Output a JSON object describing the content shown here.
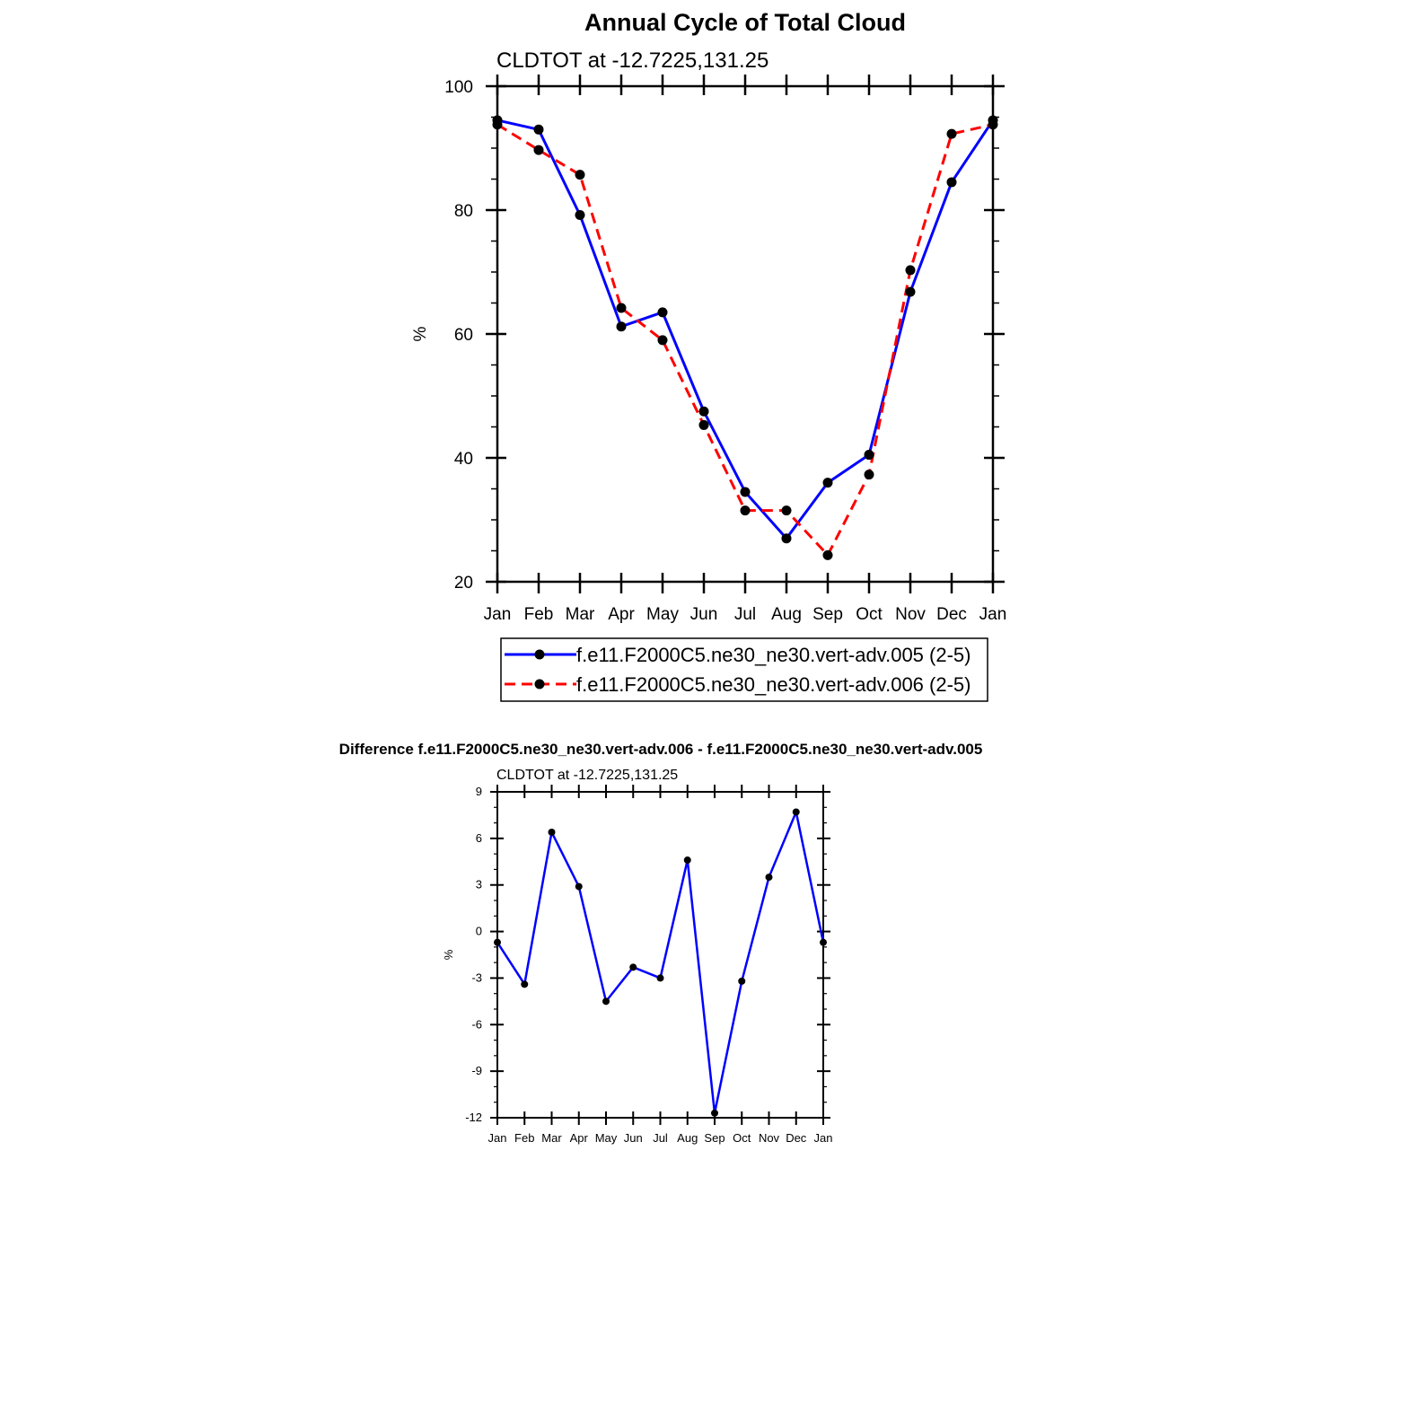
{
  "chart_data": [
    {
      "type": "line",
      "title": "Annual Cycle of Total Cloud",
      "subtitle": "CLDTOT at -12.7225,131.25",
      "xlabel": "",
      "ylabel": "%",
      "categories": [
        "Jan",
        "Feb",
        "Mar",
        "Apr",
        "May",
        "Jun",
        "Jul",
        "Aug",
        "Sep",
        "Oct",
        "Nov",
        "Dec",
        "Jan"
      ],
      "ylim": [
        20,
        100
      ],
      "yticks": [
        20,
        40,
        60,
        80,
        100
      ],
      "grid": false,
      "legend_position": "bottom",
      "series": [
        {
          "name": "f.e11.F2000C5.ne30_ne30.vert-adv.005 (2-5)",
          "color": "#0000ff",
          "dash": "solid",
          "values": [
            94.5,
            93.0,
            79.2,
            61.2,
            63.5,
            47.5,
            34.5,
            27.0,
            36.0,
            40.5,
            66.8,
            84.5,
            94.5
          ]
        },
        {
          "name": "f.e11.F2000C5.ne30_ne30.vert-adv.006 (2-5)",
          "color": "#ff0000",
          "dash": "dashed",
          "values": [
            93.8,
            89.7,
            85.7,
            64.2,
            59.0,
            45.3,
            31.5,
            31.5,
            24.3,
            37.3,
            70.3,
            92.3,
            93.8
          ]
        }
      ]
    },
    {
      "type": "line",
      "title": "Difference f.e11.F2000C5.ne30_ne30.vert-adv.006 - f.e11.F2000C5.ne30_ne30.vert-adv.005",
      "subtitle": "CLDTOT at -12.7225,131.25",
      "xlabel": "",
      "ylabel": "%",
      "categories": [
        "Jan",
        "Feb",
        "Mar",
        "Apr",
        "May",
        "Jun",
        "Jul",
        "Aug",
        "Sep",
        "Oct",
        "Nov",
        "Dec",
        "Jan"
      ],
      "ylim": [
        -12,
        9
      ],
      "yticks": [
        -12,
        -9,
        -6,
        -3,
        0,
        3,
        6,
        9
      ],
      "grid": false,
      "series": [
        {
          "name": "difference",
          "color": "#0000ff",
          "dash": "solid",
          "values": [
            -0.7,
            -3.4,
            6.4,
            2.9,
            -4.5,
            -2.3,
            -3.0,
            4.6,
            -11.7,
            -3.2,
            3.5,
            7.7,
            -0.7
          ]
        }
      ]
    }
  ]
}
